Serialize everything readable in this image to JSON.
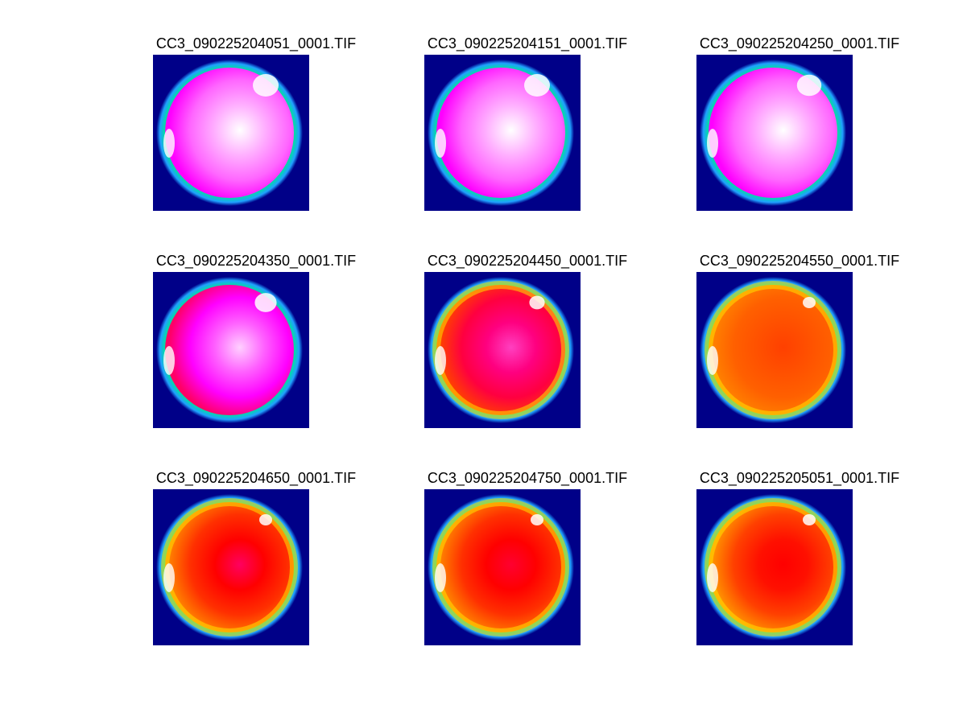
{
  "panels": [
    {
      "title": "CC3_090225204051_0001.TIF",
      "palette": [
        "#ff00ff",
        "#ff66ff",
        "#ffb0ff",
        "#ffffff"
      ],
      "bright": 1.0
    },
    {
      "title": "CC3_090225204151_0001.TIF",
      "palette": [
        "#ff00ff",
        "#ff66ff",
        "#ffb0ff",
        "#ffffff"
      ],
      "bright": 1.0
    },
    {
      "title": "CC3_090225204250_0001.TIF",
      "palette": [
        "#ff00ff",
        "#ff66ff",
        "#ffb0ff",
        "#ffffff"
      ],
      "bright": 0.95
    },
    {
      "title": "CC3_090225204350_0001.TIF",
      "palette": [
        "#ff0066",
        "#ff00ff",
        "#ff60ff",
        "#ffd0ff"
      ],
      "bright": 0.85
    },
    {
      "title": "CC3_090225204450_0001.TIF",
      "palette": [
        "#ff4000",
        "#ff0040",
        "#ff0080",
        "#ff40c0"
      ],
      "bright": 0.6
    },
    {
      "title": "CC3_090225204550_0001.TIF",
      "palette": [
        "#ff8000",
        "#ff6000",
        "#ff5000",
        "#ff4000"
      ],
      "bright": 0.35
    },
    {
      "title": "CC3_090225204650_0001.TIF",
      "palette": [
        "#ff8000",
        "#ff3000",
        "#ff0000",
        "#ff0060"
      ],
      "bright": 0.4
    },
    {
      "title": "CC3_090225204750_0001.TIF",
      "palette": [
        "#ff8000",
        "#ff3000",
        "#ff0000",
        "#ff0030"
      ],
      "bright": 0.4
    },
    {
      "title": "CC3_090225205051_0001.TIF",
      "palette": [
        "#ff9000",
        "#ff4000",
        "#ff1000",
        "#ff0000"
      ],
      "bright": 0.35
    }
  ],
  "colors": {
    "background": "#000088",
    "rim_outer": "#20a0ff",
    "rim_mid": "#00e0a0",
    "rim_inner": "#80ff00",
    "highlight": "#ffffff"
  }
}
